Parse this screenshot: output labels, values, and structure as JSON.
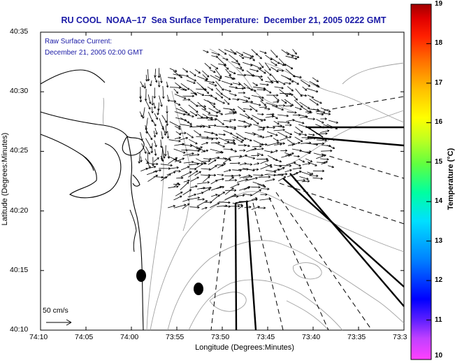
{
  "title": "RU COOL  NOAA–17  Sea Surface Temperature:  December 21, 2005 0222 GMT",
  "annotation_line1": "Raw Surface Current:",
  "annotation_line2": "December 21, 2005 02:00 GMT",
  "scale_label": "50 cm/s",
  "xlabel": "Longitude (Degrees:Minutes)",
  "ylabel": "Latitude (Degrees:Minutes)",
  "colorbar_label": "Temperature (°C)",
  "x_ticks": [
    "74:10",
    "74:05",
    "74:00",
    "73:55",
    "73:50",
    "73:45",
    "73:40",
    "73:35",
    "73:3"
  ],
  "y_ticks": [
    "40:35",
    "40:30",
    "40:25",
    "40:20",
    "40:15",
    "40:10"
  ],
  "colorbar_ticks": [
    "19",
    "18",
    "17",
    "16",
    "15",
    "14",
    "13",
    "12",
    "11",
    "10"
  ],
  "colorbar_range": [
    10,
    19
  ],
  "colors": {
    "title": "#1a1aa6",
    "coastline": "#000000",
    "bathymetry": "#a0a0a0",
    "arrows": "#000000"
  }
}
